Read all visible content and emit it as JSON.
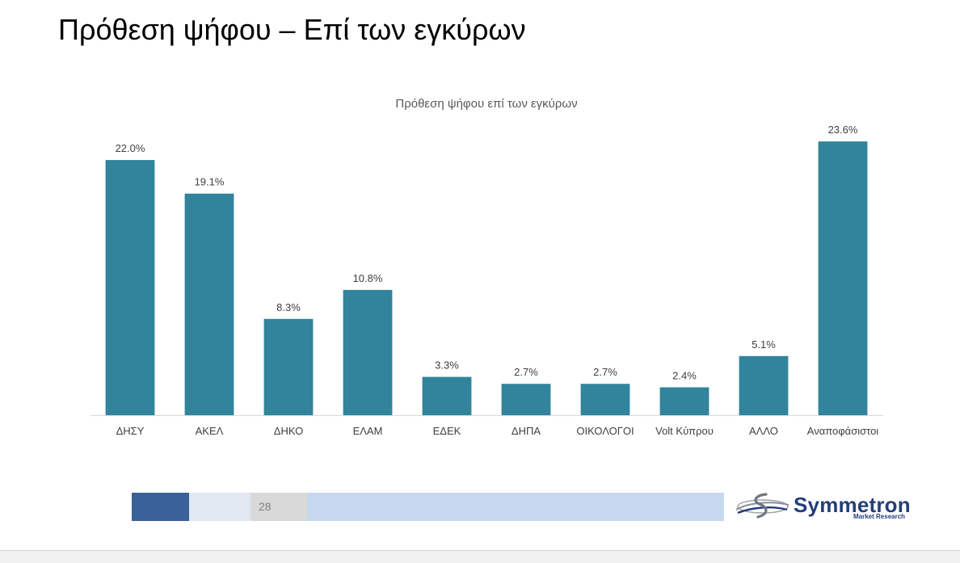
{
  "slide": {
    "title": "Πρόθεση ψήφου – Επί των εγκύρων",
    "page_number": "28"
  },
  "logo": {
    "name": "Symmetron",
    "tagline": "Market Research",
    "icon": "symmetron-swoosh-icon"
  },
  "colors": {
    "bar": "#31849b",
    "axis": "#d9d9d9",
    "footer_dark": "#3a6198",
    "footer_light": "#e0e8f2",
    "footer_grey": "#d9d9d9",
    "footer_blue": "#c6d8ef",
    "logo_text": "#233e7a"
  },
  "chart_data": {
    "type": "bar",
    "title": "Πρόθεση ψήφου επί των εγκύρων",
    "categories": [
      "ΔΗΣΥ",
      "ΑΚΕΛ",
      "ΔΗΚΟ",
      "ΕΛΑΜ",
      "ΕΔΕΚ",
      "ΔΗΠΑ",
      "ΟΙΚΟΛΟΓΟΙ",
      "Volt Κύπρου",
      "ΑΛΛΟ",
      "Αναποφάσιστοι"
    ],
    "values": [
      22.0,
      19.1,
      8.3,
      10.8,
      3.3,
      2.7,
      2.7,
      2.4,
      5.1,
      23.6
    ],
    "data_labels": [
      "22.0%",
      "19.1%",
      "8.3%",
      "10.8%",
      "3.3%",
      "2.7%",
      "2.7%",
      "2.4%",
      "5.1%",
      "23.6%"
    ],
    "xlabel": "",
    "ylabel": "",
    "ylim": [
      0,
      25
    ],
    "grid": false
  }
}
